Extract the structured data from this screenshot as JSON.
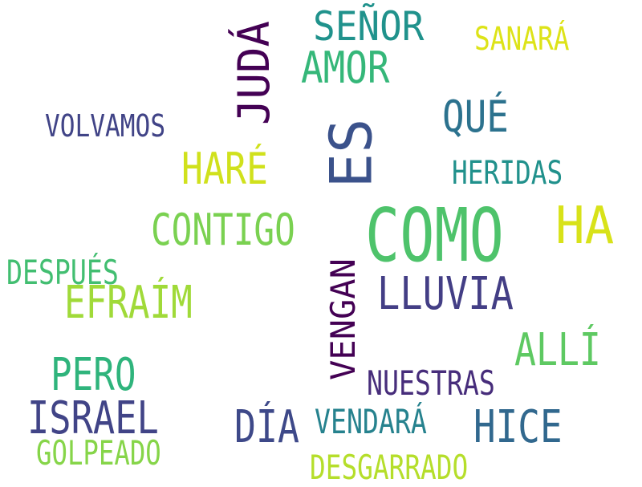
{
  "words": [
    {
      "text": "COMO",
      "color": "#4ec36b"
    },
    {
      "text": "ES",
      "color": "#3b528b"
    },
    {
      "text": "HA",
      "color": "#d8e219"
    },
    {
      "text": "SEÑOR",
      "color": "#20928c"
    },
    {
      "text": "JUDÁ",
      "color": "#440154"
    },
    {
      "text": "SANARÁ",
      "color": "#dde318"
    },
    {
      "text": "AMOR",
      "color": "#35b779"
    },
    {
      "text": "QUÉ",
      "color": "#2c728e"
    },
    {
      "text": "VOLVAMOS",
      "color": "#414487"
    },
    {
      "text": "HARÉ",
      "color": "#d0e11c"
    },
    {
      "text": "HERIDAS",
      "color": "#21918c"
    },
    {
      "text": "CONTIGO",
      "color": "#7ad151"
    },
    {
      "text": "DESPUÉS",
      "color": "#42be71"
    },
    {
      "text": "EFRAÍM",
      "color": "#a0da39"
    },
    {
      "text": "LLUVIA",
      "color": "#433e85"
    },
    {
      "text": "VENGAN",
      "color": "#440154"
    },
    {
      "text": "ALLÍ",
      "color": "#5ec962"
    },
    {
      "text": "PERO",
      "color": "#2fb47c"
    },
    {
      "text": "NUESTRAS",
      "color": "#472d7b"
    },
    {
      "text": "ISRAEL",
      "color": "#414487"
    },
    {
      "text": "DÍA",
      "color": "#3e4989"
    },
    {
      "text": "VENDARÁ",
      "color": "#26828e"
    },
    {
      "text": "HICE",
      "color": "#31688e"
    },
    {
      "text": "GOLPEADO",
      "color": "#86d549"
    },
    {
      "text": "DESGARRADO",
      "color": "#b5de2b"
    }
  ]
}
